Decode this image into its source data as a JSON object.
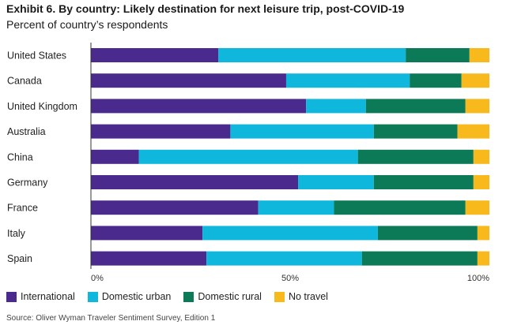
{
  "chart_data": {
    "type": "bar",
    "orientation": "horizontal",
    "stacked": true,
    "title": "Exhibit 6. By country: Likely destination for next leisure trip, post-COVID-19",
    "subtitle": "Percent of country’s respondents",
    "categories": [
      "United States",
      "Canada",
      "United Kingdom",
      "Australia",
      "China",
      "Germany",
      "France",
      "Italy",
      "Spain"
    ],
    "series": [
      {
        "name": "International",
        "color": "#4a2a8c",
        "values": [
          32,
          49,
          54,
          35,
          12,
          52,
          42,
          28,
          29
        ]
      },
      {
        "name": "Domestic urban",
        "color": "#10b7dc",
        "values": [
          47,
          31,
          15,
          36,
          55,
          19,
          19,
          44,
          39
        ]
      },
      {
        "name": "Domestic rural",
        "color": "#0d7a57",
        "values": [
          16,
          13,
          25,
          21,
          29,
          25,
          33,
          25,
          29
        ]
      },
      {
        "name": "No travel",
        "color": "#f7b91c",
        "values": [
          5,
          7,
          6,
          8,
          4,
          4,
          6,
          3,
          3
        ]
      }
    ],
    "xlim": [
      0,
      100
    ],
    "xticks": [
      "0%",
      "50%",
      "100%"
    ],
    "grid": false,
    "legend_position": "bottom-left",
    "source": "Source: Oliver Wyman Traveler Sentiment Survey, Edition 1"
  }
}
